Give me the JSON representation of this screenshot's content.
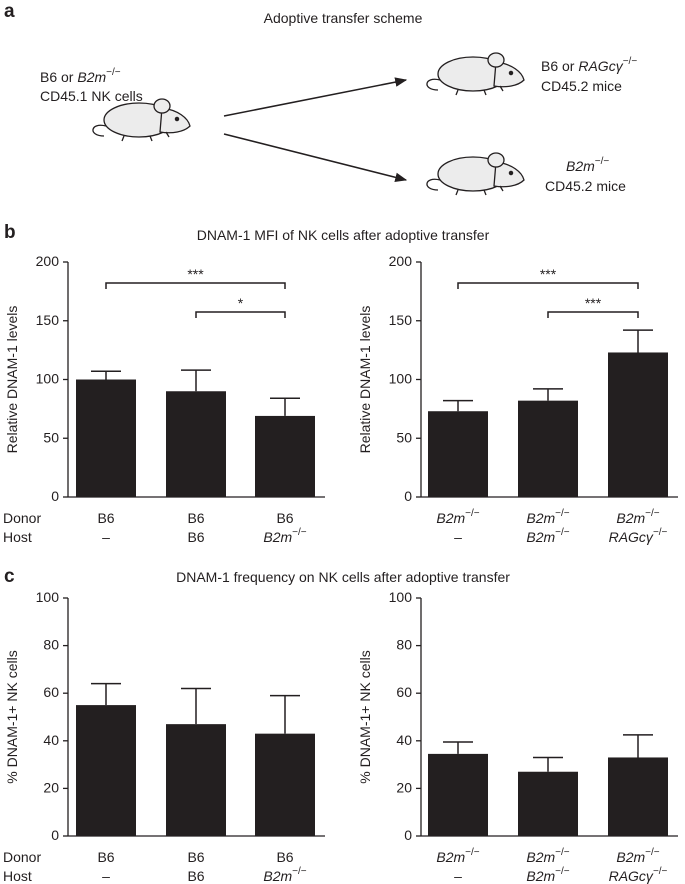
{
  "panels": [
    {
      "label": "a",
      "title": "Adoptive transfer scheme"
    },
    {
      "label": "b",
      "title": "DNAM-1 MFI of NK cells after adoptive transfer"
    },
    {
      "label": "c",
      "title": "DNAM-1 frequency on NK cells after adoptive transfer"
    }
  ],
  "scheme": {
    "donor": [
      "B6 or B2m−/−",
      "CD45.1 NK cells"
    ],
    "host_top": [
      "B6 or RAGcγ−/−",
      "CD45.2 mice"
    ],
    "host_bottom": [
      "B2m−/−",
      "CD45.2 mice"
    ]
  },
  "chart_data": [
    {
      "type": "bar",
      "ylabel": "Relative DNAM-1 levels",
      "row_labels": [
        "Donor",
        "Host"
      ],
      "categories": [
        "B6",
        "B6",
        "B6"
      ],
      "host_labels": [
        "–",
        "B6",
        "B2m−/−"
      ],
      "values": [
        100,
        90,
        69
      ],
      "errors": [
        7,
        18,
        15
      ],
      "color": "#231f20",
      "ylim": [
        0,
        200
      ],
      "yticks": [
        0,
        50,
        100,
        150,
        200
      ],
      "significance": [
        {
          "text": "***",
          "from": 0,
          "to": 2
        },
        {
          "text": "*",
          "from": 1,
          "to": 2
        }
      ]
    },
    {
      "type": "bar",
      "ylabel": "Relative DNAM-1 levels",
      "categories": [
        "B2m−/−",
        "B2m−/−",
        "B2m−/−"
      ],
      "host_labels": [
        "–",
        "B2m−/−",
        "RAGcγ−/−"
      ],
      "values": [
        73,
        82,
        123
      ],
      "errors": [
        9,
        10,
        19
      ],
      "color": "#231f20",
      "ylim": [
        0,
        200
      ],
      "yticks": [
        0,
        50,
        100,
        150,
        200
      ],
      "significance": [
        {
          "text": "***",
          "from": 0,
          "to": 2
        },
        {
          "text": "***",
          "from": 1,
          "to": 2
        }
      ]
    },
    {
      "type": "bar",
      "ylabel": "% DNAM-1+ NK cells",
      "row_labels": [
        "Donor",
        "Host"
      ],
      "categories": [
        "B6",
        "B6",
        "B6"
      ],
      "host_labels": [
        "–",
        "B6",
        "B2m−/−"
      ],
      "values": [
        55,
        47,
        43
      ],
      "errors": [
        9,
        15,
        16
      ],
      "color": "#231f20",
      "ylim": [
        0,
        100
      ],
      "yticks": [
        0,
        20,
        40,
        60,
        80,
        100
      ]
    },
    {
      "type": "bar",
      "ylabel": "% DNAM-1+ NK cells",
      "categories": [
        "B2m−/−",
        "B2m−/−",
        "B2m−/−"
      ],
      "host_labels": [
        "–",
        "B2m−/−",
        "RAGcγ−/−"
      ],
      "values": [
        34.5,
        27,
        33
      ],
      "errors": [
        5,
        6,
        9.5
      ],
      "color": "#231f20",
      "ylim": [
        0,
        100
      ],
      "yticks": [
        0,
        20,
        40,
        60,
        80,
        100
      ]
    }
  ]
}
